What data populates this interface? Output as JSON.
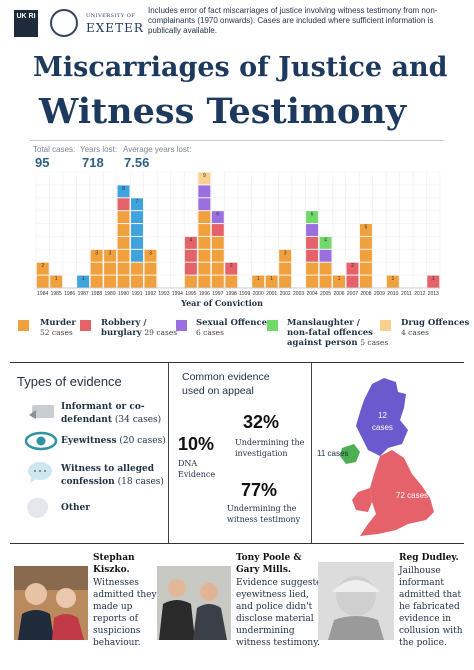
{
  "header": {
    "logo_ukri": "UK RI",
    "logo_exeter_small": "UNIVERSITY OF",
    "logo_exeter": "EXETER",
    "intro": "Includes error of fact miscarriages of justice involving witness testimony from non-complainants (1970 onwards). Cases are included where sufficient information is publically available.",
    "title_line1": "Miscarriages of Justice and",
    "title_line2": "Witness Testimony"
  },
  "stats": {
    "total_label": "Total cases:",
    "total_value": "95",
    "years_label": "Years lost:",
    "years_value": "718",
    "avg_label": "Average years lost:",
    "avg_value": "7.56"
  },
  "chart_data": {
    "type": "bar",
    "stacked": true,
    "xlabel": "Year of Conviction",
    "ylabel": "",
    "ylim": [
      0,
      9
    ],
    "grid": true,
    "categories": [
      "1984",
      "1985",
      "1986",
      "1987",
      "1988",
      "1989",
      "1990",
      "1991",
      "1992",
      "1993",
      "1994",
      "1995",
      "1996",
      "1997",
      "1998",
      "1999",
      "2000",
      "2001",
      "2002",
      "2003",
      "2004",
      "2005",
      "2006",
      "2007",
      "2008",
      "2009",
      "2010",
      "2011",
      "2012",
      "2013"
    ],
    "totals": [
      2,
      1,
      0,
      1,
      3,
      3,
      8,
      7,
      3,
      0,
      0,
      4,
      9,
      6,
      2,
      0,
      1,
      1,
      3,
      0,
      6,
      4,
      1,
      2,
      5,
      0,
      1,
      0,
      0,
      1
    ],
    "series": [
      {
        "name": "Murder",
        "color": "#f0a13e",
        "values": [
          2,
          1,
          0,
          0,
          3,
          3,
          6,
          2,
          3,
          0,
          0,
          1,
          6,
          4,
          1,
          0,
          1,
          1,
          3,
          0,
          2,
          2,
          1,
          0,
          5,
          0,
          1,
          0,
          0,
          0
        ]
      },
      {
        "name": "Robbery / burglary",
        "color": "#e5626b",
        "values": [
          0,
          0,
          0,
          0,
          0,
          0,
          1,
          0,
          0,
          0,
          0,
          3,
          0,
          1,
          1,
          0,
          0,
          0,
          0,
          0,
          2,
          0,
          0,
          2,
          0,
          0,
          0,
          0,
          0,
          1
        ]
      },
      {
        "name": "Sexual Offences",
        "color": "#9b6fe0",
        "values": [
          0,
          0,
          0,
          0,
          0,
          0,
          0,
          0,
          0,
          0,
          0,
          0,
          2,
          1,
          0,
          0,
          0,
          0,
          0,
          0,
          1,
          1,
          0,
          0,
          0,
          0,
          0,
          0,
          0,
          0
        ]
      },
      {
        "name": "Manslaughter / non-fatal offences against person",
        "color": "#72d86a",
        "values": [
          0,
          0,
          0,
          0,
          0,
          0,
          0,
          0,
          0,
          0,
          0,
          0,
          0,
          0,
          0,
          0,
          0,
          0,
          0,
          0,
          1,
          1,
          0,
          0,
          0,
          0,
          0,
          0,
          0,
          0
        ]
      },
      {
        "name": "Drug Offences",
        "color": "#f8d18f",
        "values": [
          0,
          0,
          0,
          0,
          0,
          0,
          0,
          0,
          0,
          0,
          0,
          0,
          1,
          0,
          0,
          0,
          0,
          0,
          0,
          0,
          0,
          0,
          0,
          0,
          0,
          0,
          0,
          0,
          0,
          0
        ]
      },
      {
        "name": "Eyewitness",
        "color": "#3fa4dd",
        "values": [
          0,
          0,
          0,
          1,
          0,
          0,
          1,
          5,
          0,
          0,
          0,
          0,
          0,
          0,
          0,
          0,
          0,
          0,
          0,
          0,
          0,
          0,
          0,
          0,
          0,
          0,
          0,
          0,
          0,
          0
        ]
      }
    ]
  },
  "legend": [
    {
      "name": "Murder",
      "count": "52 cases",
      "color": "#f0a13e"
    },
    {
      "name": "Robbery / burglary",
      "count": "29 cases",
      "color": "#e5626b"
    },
    {
      "name": "Sexual Offences",
      "count": "6 cases",
      "color": "#9b6fe0"
    },
    {
      "name": "Manslaughter / non-fatal offences against person",
      "count": "5 cases",
      "color": "#72d86a"
    },
    {
      "name": "Drug Offences",
      "count": "4 cases",
      "color": "#f8d18f"
    }
  ],
  "legend_text": {
    "murder": "Murder",
    "robbery_a": "Robbery /",
    "robbery_b": "burglary",
    "sexual": "Sexual Offences",
    "mansl_a": "Manslaughter /",
    "mansl_b": "non-fatal offences",
    "mansl_c": "against person",
    "drug": "Drug Offences"
  },
  "types": {
    "title": "Types of evidence",
    "informant_a": "Informant or co-",
    "informant_b": "defendant",
    "informant_count": "(34 cases)",
    "eyewitness": "Eyewitness",
    "eyewitness_count": "(20 cases)",
    "alleged_a": "Witness to alleged",
    "alleged_b": "confession",
    "alleged_count": "(18 cases)",
    "other": "Other"
  },
  "common": {
    "title_a": "Common evidence",
    "title_b": "used  on appeal",
    "p32": "32%",
    "p32_a": "Undermining the",
    "p32_b": "investigation",
    "p10": "10%",
    "p10_a": "DNA",
    "p10_b": "Evidence",
    "p77": "77%",
    "p77_a": "Undermining the",
    "p77_b": "witness testimony"
  },
  "map": {
    "scotland": "12",
    "scotland_b": "cases",
    "ni": "11 cases",
    "england": "72 cases",
    "colors": {
      "scotland": "#6a5acd",
      "england": "#e5626b",
      "ni": "#4caf50"
    }
  },
  "people": [
    {
      "name_a": "Stephan",
      "name_b": "Kiszko.",
      "desc": [
        "Witnesses",
        "admitted they",
        "made up",
        "reports of",
        "suspicions",
        "behaviour."
      ]
    },
    {
      "name_a": "Tony Poole &",
      "name_b": "Gary Mills.",
      "desc": [
        "Evidence suggested",
        "eyewitness lied,",
        "and police didn't",
        "disclose material",
        "undermining",
        "witness testimony."
      ]
    },
    {
      "name_a": "Reg Dudley.",
      "name_b": "",
      "desc": [
        "Jailhouse",
        "informant",
        "admitted that",
        "he fabricated",
        "evidence in",
        "collusion with",
        "the police."
      ]
    }
  ]
}
